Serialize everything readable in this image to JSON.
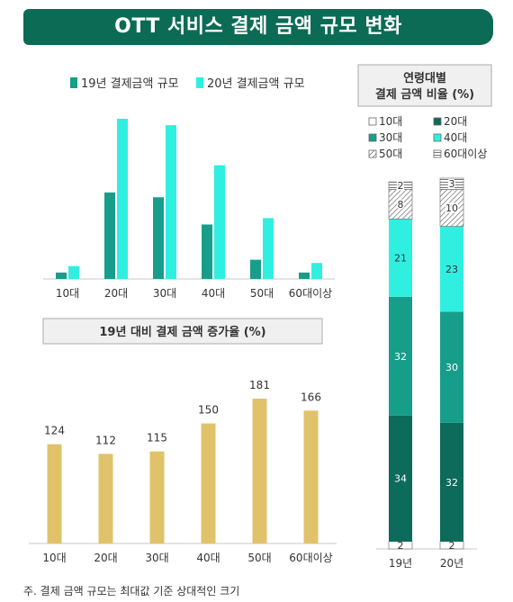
{
  "header": {
    "title": "OTT 서비스 결제 금액 규모 변화"
  },
  "colors": {
    "banner": "#0b6b55",
    "s19": "#179e8a",
    "s20": "#2ff0e0",
    "growth": "#e0c26a"
  },
  "chart_data": [
    {
      "type": "bar",
      "title": "",
      "categories": [
        "10대",
        "20대",
        "30대",
        "40대",
        "50대",
        "60대이상"
      ],
      "series": [
        {
          "name": "19년 결제금액 규모",
          "values": [
            4,
            54,
            51,
            34,
            12,
            4
          ]
        },
        {
          "name": "20년 결제금액 규모",
          "values": [
            8,
            100,
            96,
            71,
            38,
            10
          ]
        }
      ],
      "legend": "top",
      "grid": false,
      "ylim": [
        0,
        100
      ]
    },
    {
      "type": "bar",
      "title": "19년 대비 결제 금액 증가율 (%)",
      "categories": [
        "10대",
        "20대",
        "30대",
        "40대",
        "50대",
        "60대이상"
      ],
      "values": [
        124,
        112,
        115,
        150,
        181,
        166
      ],
      "grid": false,
      "ylim": [
        0,
        181
      ]
    },
    {
      "type": "bar",
      "stacked": true,
      "title": "연령대별\n결제 금액 비율 (%)",
      "categories": [
        "19년",
        "20년"
      ],
      "series": [
        {
          "name": "10대",
          "values": [
            2,
            2
          ]
        },
        {
          "name": "20대",
          "values": [
            34,
            32
          ]
        },
        {
          "name": "30대",
          "values": [
            32,
            30
          ]
        },
        {
          "name": "40대",
          "values": [
            21,
            23
          ]
        },
        {
          "name": "50대",
          "values": [
            8,
            10
          ]
        },
        {
          "name": "60대이상",
          "values": [
            2,
            3
          ]
        }
      ],
      "legend": "top",
      "grid": false
    }
  ],
  "footnote": "주. 결제 금액 규모는 최대값 기준 상대적인 크기"
}
